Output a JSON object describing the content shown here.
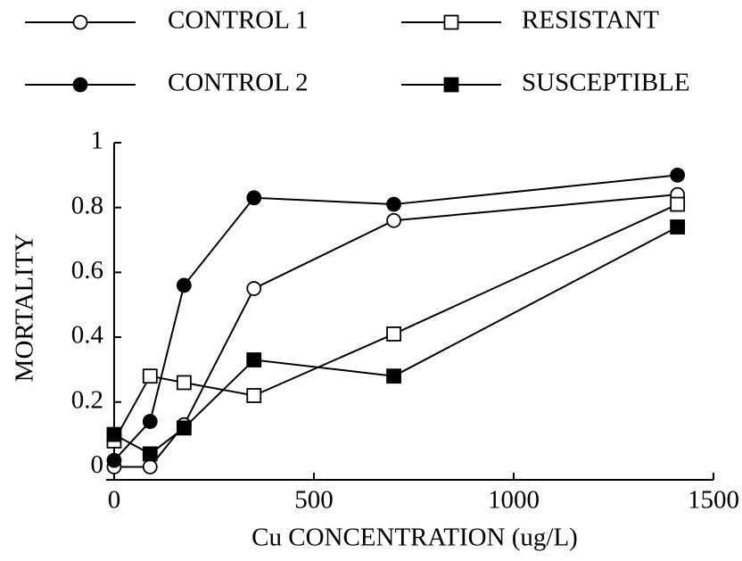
{
  "chart_data": {
    "type": "line",
    "xlabel": "Cu CONCENTRATION (ug/L)",
    "ylabel": "MORTALITY",
    "x": [
      0,
      90,
      175,
      350,
      700,
      1410
    ],
    "series": [
      {
        "name": "CONTROL 1",
        "color": "#000000",
        "marker": "open-circle",
        "values": [
          0,
          0,
          0.13,
          0.55,
          0.76,
          0.84
        ]
      },
      {
        "name": "RESISTANT",
        "color": "#000000",
        "marker": "open-square",
        "values": [
          0.08,
          0.28,
          0.26,
          0.22,
          0.41,
          0.81
        ]
      },
      {
        "name": "CONTROL 2",
        "color": "#000000",
        "marker": "filled-circle",
        "values": [
          0.02,
          0.14,
          0.56,
          0.83,
          0.81,
          0.9
        ]
      },
      {
        "name": "SUSCEPTIBLE",
        "color": "#000000",
        "marker": "filled-square",
        "values": [
          0.1,
          0.04,
          0.12,
          0.33,
          0.28,
          0.74
        ]
      }
    ],
    "xlim": [
      -20,
      1500
    ],
    "xticks": [
      0,
      500,
      1000,
      1500
    ],
    "ylim": [
      -0.04,
      1
    ],
    "yticks": [
      0,
      0.2,
      0.4,
      0.6,
      0.8,
      1
    ],
    "legend": "top"
  }
}
